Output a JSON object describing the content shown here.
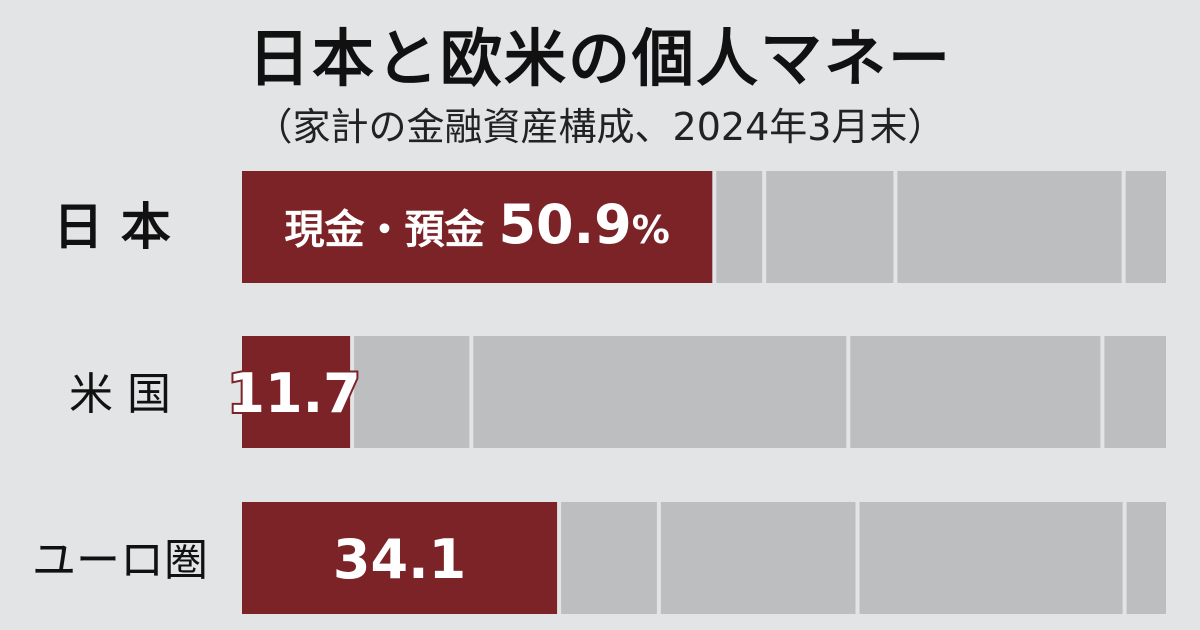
{
  "chart_data": {
    "type": "bar",
    "orientation": "horizontal-stacked-100",
    "title": "日本と欧米の個人マネー",
    "subtitle": "（家計の金融資産構成、2024年3月末）",
    "categories": [
      "日 本",
      "米 国",
      "ユーロ圏"
    ],
    "highlight_label_prefix": "現金・預金",
    "percent_sign": "%",
    "series": [
      {
        "name": "cash_deposits",
        "color": "#7c2328",
        "values": [
          50.9,
          11.7,
          34.1
        ],
        "labels": [
          "50.9",
          "11.7",
          "34.1"
        ]
      },
      {
        "name": "other_1",
        "color": "#bdbec0",
        "values": [
          5.4,
          12.9,
          10.8
        ]
      },
      {
        "name": "other_2",
        "color": "#bdbec0",
        "values": [
          14.2,
          40.8,
          21.5
        ]
      },
      {
        "name": "other_3",
        "color": "#bdbec0",
        "values": [
          24.7,
          27.5,
          28.9
        ]
      },
      {
        "name": "other_4",
        "color": "#bdbec0",
        "values": [
          4.8,
          7.1,
          4.7
        ]
      }
    ],
    "xlim": [
      0,
      100
    ]
  }
}
